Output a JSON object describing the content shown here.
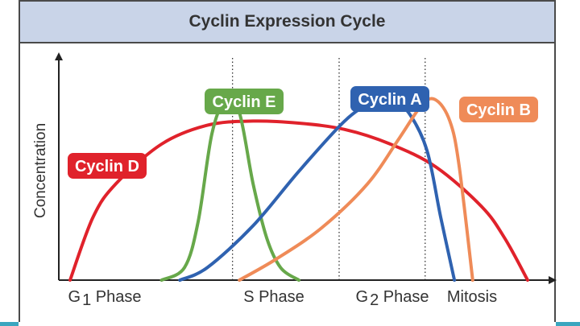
{
  "chart_data": {
    "type": "line",
    "title": "Cyclin Expression Cycle",
    "ylabel": "Concentration",
    "xlabel": "",
    "x_phases": [
      "G1 Phase",
      "S Phase",
      "G2 Phase",
      "Mitosis"
    ],
    "xlim": [
      0,
      100
    ],
    "ylim": [
      0,
      100
    ],
    "phase_boundaries": [
      35.5,
      58.8,
      77.6
    ],
    "grid": false,
    "series": [
      {
        "name": "Cyclin D",
        "color": "#e0222b",
        "x": [
          0,
          5,
          10,
          20,
          30,
          40,
          50,
          60,
          70,
          80,
          90,
          95,
          100
        ],
        "y": [
          0,
          30,
          46,
          65,
          74,
          76,
          75,
          72,
          65,
          54,
          35,
          20,
          0
        ]
      },
      {
        "name": "Cyclin E",
        "color": "#67a84a",
        "x": [
          20,
          25,
          28,
          31,
          34,
          37,
          40,
          43,
          46,
          50
        ],
        "y": [
          0,
          6,
          28,
          70,
          86,
          80,
          46,
          20,
          6,
          0
        ]
      },
      {
        "name": "Cyclin A",
        "color": "#2f62b0",
        "x": [
          24,
          30,
          40,
          50,
          60,
          66,
          70,
          74,
          78,
          81,
          84
        ],
        "y": [
          0,
          6,
          26,
          52,
          76,
          85,
          87,
          80,
          62,
          30,
          0
        ]
      },
      {
        "name": "Cyclin B",
        "color": "#ef8b58",
        "x": [
          37,
          45,
          55,
          65,
          72,
          77,
          80,
          83,
          85,
          88
        ],
        "y": [
          0,
          10,
          25,
          46,
          68,
          84,
          86,
          76,
          55,
          0
        ]
      }
    ]
  }
}
